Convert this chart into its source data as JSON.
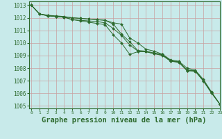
{
  "background_color": "#c8eaea",
  "grid_color": "#c8a0a0",
  "line_color": "#2d6a2d",
  "xlabel": "Graphe pression niveau de la mer (hPa)",
  "xlabel_fontsize": 7.5,
  "ylim": [
    1004.8,
    1013.3
  ],
  "xlim": [
    -0.3,
    23
  ],
  "yticks": [
    1005,
    1006,
    1007,
    1008,
    1009,
    1010,
    1011,
    1012,
    1013
  ],
  "xticks": [
    0,
    1,
    2,
    3,
    4,
    5,
    6,
    7,
    8,
    9,
    10,
    11,
    12,
    13,
    14,
    15,
    16,
    17,
    18,
    19,
    20,
    21,
    22,
    23
  ],
  "series": [
    [
      1013.0,
      1012.3,
      1012.2,
      1012.15,
      1012.1,
      1012.0,
      1011.95,
      1011.9,
      1011.85,
      1011.8,
      1011.5,
      1010.7,
      1010.1,
      1009.4,
      1009.35,
      1009.2,
      1009.1,
      1008.6,
      1008.5,
      1007.85,
      1007.8,
      1007.0,
      1006.05,
      1005.15
    ],
    [
      1013.0,
      1012.3,
      1012.2,
      1012.1,
      1012.05,
      1012.0,
      1011.95,
      1011.9,
      1011.85,
      1011.8,
      1011.6,
      1011.5,
      1010.4,
      1010.0,
      1009.5,
      1009.35,
      1009.1,
      1008.65,
      1008.55,
      1008.0,
      1007.85,
      1007.1,
      1006.1,
      1005.15
    ],
    [
      1013.0,
      1012.3,
      1012.15,
      1012.1,
      1012.05,
      1011.85,
      1011.8,
      1011.75,
      1011.7,
      1011.6,
      1011.15,
      1010.6,
      1009.85,
      1009.35,
      1009.3,
      1009.15,
      1009.0,
      1008.55,
      1008.45,
      1007.8,
      1007.8,
      1007.0,
      1006.05,
      1005.15
    ],
    [
      1013.0,
      1012.3,
      1012.15,
      1012.1,
      1012.05,
      1011.85,
      1011.75,
      1011.65,
      1011.55,
      1011.45,
      1010.65,
      1010.0,
      1009.1,
      1009.3,
      1009.3,
      1009.15,
      1009.05,
      1008.55,
      1008.5,
      1007.8,
      1007.75,
      1006.97,
      1006.0,
      1005.15
    ]
  ]
}
